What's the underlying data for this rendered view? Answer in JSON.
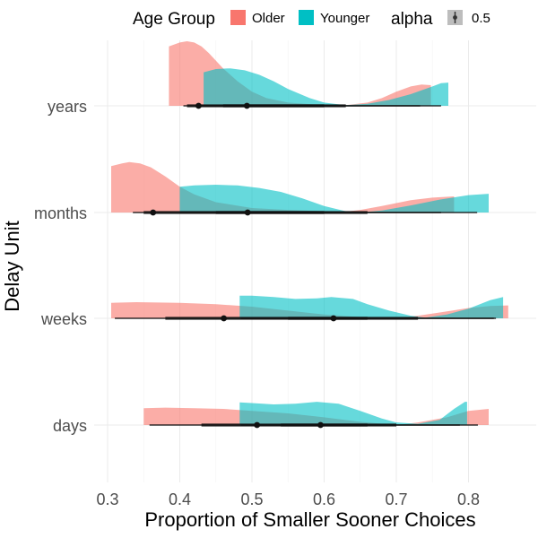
{
  "chart_data": {
    "type": "density-ridge",
    "xlabel": "Proportion of Smaller Sooner Choices",
    "ylabel": "Delay Unit",
    "xlim": [
      0.3,
      0.85
    ],
    "x_ticks": [
      "0.3",
      "0.4",
      "0.5",
      "0.6",
      "0.7",
      "0.8"
    ],
    "categories": [
      "years",
      "months",
      "weeks",
      "days"
    ],
    "grid": true,
    "legend": {
      "position": "top",
      "group_title": "Age Group",
      "groups": [
        {
          "name": "Older",
          "color": "#F8766D"
        },
        {
          "name": "Younger",
          "color": "#00BFC4"
        }
      ],
      "alpha_title": "alpha",
      "alpha_value": "0.5"
    },
    "series": [
      {
        "name": "Older",
        "color": "#F8766D",
        "rows": [
          {
            "category": "years",
            "range": [
              0.385,
              0.748
            ],
            "density": [
              [
                0.385,
                0.92
              ],
              [
                0.39,
                0.94
              ],
              [
                0.4,
                0.98
              ],
              [
                0.41,
                1.0
              ],
              [
                0.42,
                0.98
              ],
              [
                0.43,
                0.92
              ],
              [
                0.44,
                0.82
              ],
              [
                0.46,
                0.58
              ],
              [
                0.48,
                0.38
              ],
              [
                0.5,
                0.22
              ],
              [
                0.52,
                0.12
              ],
              [
                0.55,
                0.05
              ],
              [
                0.6,
                0.01
              ],
              [
                0.63,
                0.01
              ],
              [
                0.66,
                0.05
              ],
              [
                0.68,
                0.12
              ],
              [
                0.7,
                0.22
              ],
              [
                0.72,
                0.3
              ],
              [
                0.735,
                0.33
              ],
              [
                0.748,
                0.32
              ]
            ],
            "median": 0.426,
            "interval_wide": [
              0.405,
              0.733
            ],
            "interval_narrow": [
              0.41,
              0.6
            ]
          },
          {
            "category": "months",
            "range": [
              0.305,
              0.78
            ],
            "density": [
              [
                0.305,
                0.72
              ],
              [
                0.32,
                0.76
              ],
              [
                0.33,
                0.78
              ],
              [
                0.345,
                0.76
              ],
              [
                0.36,
                0.7
              ],
              [
                0.38,
                0.56
              ],
              [
                0.4,
                0.4
              ],
              [
                0.42,
                0.28
              ],
              [
                0.45,
                0.16
              ],
              [
                0.5,
                0.07
              ],
              [
                0.55,
                0.04
              ],
              [
                0.6,
                0.02
              ],
              [
                0.62,
                0.0
              ],
              [
                0.65,
                0.04
              ],
              [
                0.68,
                0.1
              ],
              [
                0.72,
                0.19
              ],
              [
                0.75,
                0.23
              ],
              [
                0.78,
                0.25
              ]
            ],
            "median": 0.363,
            "interval_wide": [
              0.335,
              0.762
            ],
            "interval_narrow": [
              0.35,
              0.6
            ]
          },
          {
            "category": "weeks",
            "range": [
              0.305,
              0.855
            ],
            "density": [
              [
                0.305,
                0.24
              ],
              [
                0.34,
                0.25
              ],
              [
                0.4,
                0.24
              ],
              [
                0.45,
                0.22
              ],
              [
                0.5,
                0.18
              ],
              [
                0.55,
                0.12
              ],
              [
                0.6,
                0.06
              ],
              [
                0.65,
                0.02
              ],
              [
                0.7,
                0.0
              ],
              [
                0.73,
                0.04
              ],
              [
                0.76,
                0.09
              ],
              [
                0.8,
                0.16
              ],
              [
                0.83,
                0.19
              ],
              [
                0.855,
                0.2
              ]
            ],
            "median": 0.461,
            "interval_wide": [
              0.31,
              0.838
            ],
            "interval_narrow": [
              0.38,
              0.66
            ]
          },
          {
            "category": "days",
            "range": [
              0.35,
              0.828
            ],
            "density": [
              [
                0.35,
                0.26
              ],
              [
                0.38,
                0.27
              ],
              [
                0.42,
                0.26
              ],
              [
                0.46,
                0.25
              ],
              [
                0.5,
                0.22
              ],
              [
                0.55,
                0.18
              ],
              [
                0.6,
                0.12
              ],
              [
                0.65,
                0.05
              ],
              [
                0.7,
                0.0
              ],
              [
                0.73,
                0.04
              ],
              [
                0.77,
                0.12
              ],
              [
                0.8,
                0.22
              ],
              [
                0.828,
                0.25
              ]
            ],
            "median": 0.507,
            "interval_wide": [
              0.358,
              0.813
            ],
            "interval_narrow": [
              0.43,
              0.66
            ]
          }
        ]
      },
      {
        "name": "Younger",
        "color": "#00BFC4",
        "rows": [
          {
            "category": "years",
            "range": [
              0.433,
              0.772
            ],
            "density": [
              [
                0.433,
                0.52
              ],
              [
                0.45,
                0.57
              ],
              [
                0.47,
                0.58
              ],
              [
                0.49,
                0.55
              ],
              [
                0.51,
                0.48
              ],
              [
                0.53,
                0.38
              ],
              [
                0.55,
                0.26
              ],
              [
                0.58,
                0.12
              ],
              [
                0.6,
                0.05
              ],
              [
                0.63,
                0.01
              ],
              [
                0.66,
                0.03
              ],
              [
                0.69,
                0.09
              ],
              [
                0.72,
                0.18
              ],
              [
                0.75,
                0.3
              ],
              [
                0.762,
                0.35
              ],
              [
                0.772,
                0.36
              ]
            ],
            "median": 0.493,
            "interval_wide": [
              0.43,
              0.762
            ],
            "interval_narrow": [
              0.46,
              0.63
            ]
          },
          {
            "category": "months",
            "range": [
              0.4,
              0.828
            ],
            "density": [
              [
                0.4,
                0.4
              ],
              [
                0.42,
                0.42
              ],
              [
                0.45,
                0.43
              ],
              [
                0.48,
                0.42
              ],
              [
                0.51,
                0.38
              ],
              [
                0.54,
                0.32
              ],
              [
                0.57,
                0.22
              ],
              [
                0.6,
                0.1
              ],
              [
                0.63,
                0.02
              ],
              [
                0.65,
                0.0
              ],
              [
                0.68,
                0.03
              ],
              [
                0.72,
                0.11
              ],
              [
                0.76,
                0.2
              ],
              [
                0.8,
                0.27
              ],
              [
                0.828,
                0.29
              ]
            ],
            "median": 0.494,
            "interval_wide": [
              0.4,
              0.812
            ],
            "interval_narrow": [
              0.45,
              0.66
            ]
          },
          {
            "category": "weeks",
            "range": [
              0.483,
              0.848
            ],
            "density": [
              [
                0.483,
                0.35
              ],
              [
                0.5,
                0.35
              ],
              [
                0.53,
                0.33
              ],
              [
                0.56,
                0.3
              ],
              [
                0.59,
                0.31
              ],
              [
                0.61,
                0.33
              ],
              [
                0.64,
                0.3
              ],
              [
                0.66,
                0.22
              ],
              [
                0.69,
                0.12
              ],
              [
                0.72,
                0.04
              ],
              [
                0.74,
                0.01
              ],
              [
                0.77,
                0.06
              ],
              [
                0.8,
                0.15
              ],
              [
                0.83,
                0.28
              ],
              [
                0.848,
                0.33
              ]
            ],
            "median": 0.613,
            "interval_wide": [
              0.485,
              0.835
            ],
            "interval_narrow": [
              0.55,
              0.73
            ]
          },
          {
            "category": "days",
            "range": [
              0.483,
              0.798
            ],
            "density": [
              [
                0.483,
                0.35
              ],
              [
                0.5,
                0.34
              ],
              [
                0.53,
                0.32
              ],
              [
                0.56,
                0.33
              ],
              [
                0.59,
                0.36
              ],
              [
                0.62,
                0.33
              ],
              [
                0.65,
                0.22
              ],
              [
                0.68,
                0.1
              ],
              [
                0.7,
                0.04
              ],
              [
                0.73,
                0.02
              ],
              [
                0.76,
                0.08
              ],
              [
                0.78,
                0.25
              ],
              [
                0.795,
                0.36
              ],
              [
                0.798,
                0.36
              ]
            ],
            "median": 0.595,
            "interval_wide": [
              0.485,
              0.788
            ],
            "interval_narrow": [
              0.54,
              0.7
            ]
          }
        ]
      }
    ]
  }
}
